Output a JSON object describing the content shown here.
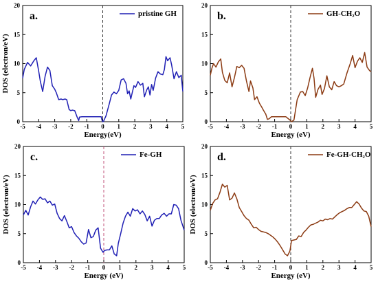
{
  "chart_data": [
    {
      "type": "line",
      "panel_label": "a.",
      "xlabel": "Energy(eV)",
      "ylabel": "DOS (electron/eV)",
      "xlim": [
        -5,
        5
      ],
      "ylim": [
        0,
        20
      ],
      "xticks": [
        "-5",
        "-4",
        "-3",
        "-2",
        "-1",
        "0",
        "1",
        "2",
        "3",
        "4",
        "5"
      ],
      "yticks": [
        "0",
        "5",
        "10",
        "15",
        "20"
      ],
      "fermi_level": 0,
      "legend": "top-right",
      "series": [
        {
          "name": "pristine GH",
          "color": "#1f1fb4",
          "x": [
            -5,
            -4.9,
            -4.7,
            -4.5,
            -4.3,
            -4.15,
            -4.0,
            -3.9,
            -3.75,
            -3.6,
            -3.45,
            -3.3,
            -3.15,
            -3.0,
            -2.9,
            -2.75,
            -2.6,
            -2.5,
            -2.35,
            -2.25,
            -2.1,
            -2.0,
            -1.9,
            -1.75,
            -1.6,
            -1.5,
            -1.45,
            -1.3,
            -1.2,
            -1.05,
            -0.1,
            -0.05,
            0.0,
            0.05,
            0.2,
            0.4,
            0.55,
            0.7,
            0.85,
            1.0,
            1.15,
            1.3,
            1.45,
            1.55,
            1.65,
            1.75,
            1.85,
            1.95,
            2.05,
            2.2,
            2.35,
            2.5,
            2.6,
            2.75,
            2.85,
            2.95,
            3.05,
            3.15,
            3.3,
            3.45,
            3.6,
            3.75,
            3.85,
            3.95,
            4.05,
            4.2,
            4.3,
            4.45,
            4.6,
            4.75,
            4.9,
            5.0
          ],
          "y": [
            7.5,
            9.0,
            10.2,
            9.6,
            10.5,
            11.0,
            8.7,
            7.0,
            5.2,
            7.8,
            9.4,
            8.8,
            6.2,
            5.6,
            5.0,
            3.8,
            3.9,
            3.8,
            3.9,
            3.8,
            2.1,
            1.9,
            2.0,
            1.9,
            0.8,
            0.2,
            0.8,
            0.85,
            0.85,
            0.85,
            0.85,
            0.3,
            0.0,
            0.1,
            1.0,
            3.0,
            4.6,
            5.1,
            4.8,
            5.4,
            7.2,
            7.4,
            6.6,
            4.8,
            5.3,
            3.9,
            5.1,
            6.2,
            5.9,
            6.9,
            6.3,
            6.6,
            4.3,
            5.5,
            6.0,
            4.6,
            6.4,
            5.4,
            7.5,
            8.6,
            8.2,
            8.1,
            9.0,
            11.2,
            10.5,
            11.0,
            9.8,
            7.4,
            8.6,
            7.6,
            8.0,
            5.2
          ]
        }
      ]
    },
    {
      "type": "line",
      "panel_label": "b.",
      "xlabel": "Energy (eV)",
      "ylabel": "",
      "xlim": [
        -5,
        5
      ],
      "ylim": [
        0,
        20
      ],
      "xticks": [
        "-5",
        "-4",
        "-3",
        "-2",
        "-1",
        "0",
        "1",
        "2",
        "3",
        "4",
        "5"
      ],
      "yticks": [
        "0",
        "5",
        "10",
        "15",
        "20"
      ],
      "fermi_level": 0,
      "legend": "top-right",
      "series": [
        {
          "name": "GH-CH₂O",
          "color": "#8b3a12",
          "x": [
            -5,
            -4.9,
            -4.8,
            -4.65,
            -4.5,
            -4.35,
            -4.25,
            -4.1,
            -3.95,
            -3.8,
            -3.65,
            -3.5,
            -3.35,
            -3.2,
            -3.05,
            -2.9,
            -2.75,
            -2.6,
            -2.5,
            -2.35,
            -2.25,
            -2.1,
            -1.95,
            -1.8,
            -1.7,
            -1.55,
            -1.45,
            -1.35,
            -1.2,
            -0.9,
            -0.6,
            -0.3,
            -0.05,
            0.05,
            0.2,
            0.4,
            0.6,
            0.75,
            0.9,
            1.05,
            1.2,
            1.35,
            1.45,
            1.55,
            1.7,
            1.85,
            1.95,
            2.1,
            2.25,
            2.4,
            2.55,
            2.7,
            2.85,
            3.0,
            3.15,
            3.3,
            3.5,
            3.7,
            3.85,
            4.0,
            4.15,
            4.3,
            4.45,
            4.6,
            4.75,
            4.9,
            5.0
          ],
          "y": [
            8.0,
            9.2,
            10.0,
            9.4,
            10.3,
            10.8,
            8.5,
            7.1,
            6.7,
            8.4,
            6.0,
            7.6,
            9.5,
            9.3,
            9.7,
            9.2,
            7.0,
            5.2,
            7.0,
            5.8,
            3.8,
            4.3,
            3.2,
            2.5,
            2.0,
            1.3,
            0.4,
            0.5,
            0.85,
            0.85,
            0.85,
            0.85,
            0.3,
            0.0,
            0.3,
            3.8,
            5.1,
            5.2,
            4.5,
            5.8,
            7.6,
            9.2,
            7.5,
            4.2,
            5.6,
            6.3,
            4.7,
            5.7,
            7.9,
            6.0,
            5.5,
            6.9,
            6.2,
            6.0,
            6.2,
            6.5,
            8.4,
            10.0,
            11.4,
            9.3,
            10.4,
            11.0,
            10.2,
            11.9,
            9.4,
            8.8,
            8.6
          ]
        }
      ]
    },
    {
      "type": "line",
      "panel_label": "c.",
      "xlabel": "Energy (eV)",
      "ylabel": "DOS (electron/eV)",
      "xlim": [
        -5,
        5
      ],
      "ylim": [
        0,
        20
      ],
      "xticks": [
        "-5",
        "-4",
        "-3",
        "-2",
        "-1",
        "0",
        "1",
        "2",
        "3",
        "4",
        "5"
      ],
      "yticks": [
        "0",
        "5",
        "10",
        "15",
        "20"
      ],
      "fermi_level": 0,
      "legend": "top-right",
      "series": [
        {
          "name": "Fe-GH",
          "color": "#1f1fb4",
          "x": [
            -5,
            -4.85,
            -4.7,
            -4.55,
            -4.4,
            -4.25,
            -4.1,
            -3.95,
            -3.8,
            -3.65,
            -3.5,
            -3.35,
            -3.2,
            -3.05,
            -2.9,
            -2.75,
            -2.6,
            -2.45,
            -2.3,
            -2.15,
            -2.0,
            -1.85,
            -1.7,
            -1.55,
            -1.4,
            -1.25,
            -1.1,
            -0.95,
            -0.8,
            -0.65,
            -0.5,
            -0.35,
            -0.2,
            -0.05,
            0.05,
            0.2,
            0.35,
            0.5,
            0.65,
            0.8,
            0.9,
            1.05,
            1.2,
            1.35,
            1.5,
            1.65,
            1.8,
            1.95,
            2.1,
            2.25,
            2.4,
            2.55,
            2.7,
            2.85,
            3.0,
            3.15,
            3.3,
            3.45,
            3.6,
            3.75,
            3.9,
            4.05,
            4.2,
            4.35,
            4.5,
            4.65,
            4.8,
            5.0
          ],
          "y": [
            8.2,
            9.0,
            8.2,
            9.6,
            10.6,
            10.1,
            10.8,
            11.3,
            10.9,
            11.0,
            10.3,
            10.6,
            9.9,
            10.1,
            8.5,
            7.6,
            7.2,
            8.1,
            7.1,
            6.0,
            6.2,
            5.2,
            4.6,
            4.2,
            3.6,
            3.2,
            3.4,
            5.7,
            4.3,
            4.5,
            5.6,
            6.0,
            2.5,
            1.8,
            2.1,
            2.2,
            2.2,
            2.9,
            1.5,
            1.2,
            3.3,
            5.0,
            6.8,
            8.0,
            8.7,
            8.0,
            9.3,
            8.9,
            9.1,
            8.4,
            8.9,
            8.3,
            7.2,
            8.0,
            6.3,
            7.3,
            7.6,
            7.6,
            8.2,
            8.5,
            8.0,
            8.4,
            8.4,
            10.0,
            9.9,
            9.3,
            7.3,
            5.6
          ]
        }
      ]
    },
    {
      "type": "line",
      "panel_label": "d.",
      "xlabel": "Energy (eV)",
      "ylabel": "DOS (electron/eV)",
      "xlim": [
        -5,
        5
      ],
      "ylim": [
        0,
        20
      ],
      "xticks": [
        "-5",
        "-4",
        "-3",
        "-2",
        "-1",
        "0",
        "1",
        "2",
        "3",
        "4",
        "5"
      ],
      "yticks": [
        "0",
        "5",
        "10",
        "15",
        "20"
      ],
      "fermi_level": 0,
      "legend": "top-right",
      "series": [
        {
          "name": "Fe-GH-CH₂O",
          "color": "#8b3a12",
          "x": [
            -5,
            -4.85,
            -4.7,
            -4.55,
            -4.4,
            -4.25,
            -4.1,
            -3.95,
            -3.8,
            -3.65,
            -3.5,
            -3.35,
            -3.2,
            -3.05,
            -2.9,
            -2.75,
            -2.6,
            -2.45,
            -2.3,
            -2.15,
            -2.0,
            -1.85,
            -1.7,
            -1.55,
            -1.4,
            -1.25,
            -1.1,
            -0.95,
            -0.8,
            -0.65,
            -0.5,
            -0.35,
            -0.2,
            -0.05,
            0.05,
            0.2,
            0.35,
            0.5,
            0.65,
            0.8,
            0.95,
            1.1,
            1.25,
            1.4,
            1.55,
            1.7,
            1.85,
            2.0,
            2.15,
            2.3,
            2.45,
            2.6,
            2.75,
            2.9,
            3.05,
            3.2,
            3.35,
            3.5,
            3.65,
            3.8,
            3.95,
            4.1,
            4.25,
            4.4,
            4.55,
            4.7,
            4.85,
            5.0
          ],
          "y": [
            9.0,
            10.2,
            10.8,
            11.0,
            12.1,
            13.5,
            13.0,
            13.3,
            10.8,
            11.1,
            12.0,
            11.0,
            9.5,
            8.8,
            8.1,
            7.6,
            7.3,
            6.6,
            6.0,
            6.1,
            5.7,
            5.4,
            5.3,
            5.2,
            5.0,
            4.7,
            4.4,
            4.0,
            3.5,
            2.9,
            2.2,
            1.5,
            1.2,
            2.0,
            3.8,
            3.9,
            4.0,
            4.6,
            4.5,
            5.2,
            5.6,
            6.1,
            6.5,
            6.6,
            6.8,
            7.0,
            7.3,
            7.2,
            7.5,
            7.4,
            7.6,
            7.5,
            7.9,
            8.3,
            8.6,
            8.8,
            9.0,
            9.3,
            9.5,
            9.5,
            10.0,
            10.5,
            10.1,
            9.4,
            8.9,
            8.8,
            8.0,
            6.2
          ]
        }
      ]
    }
  ]
}
